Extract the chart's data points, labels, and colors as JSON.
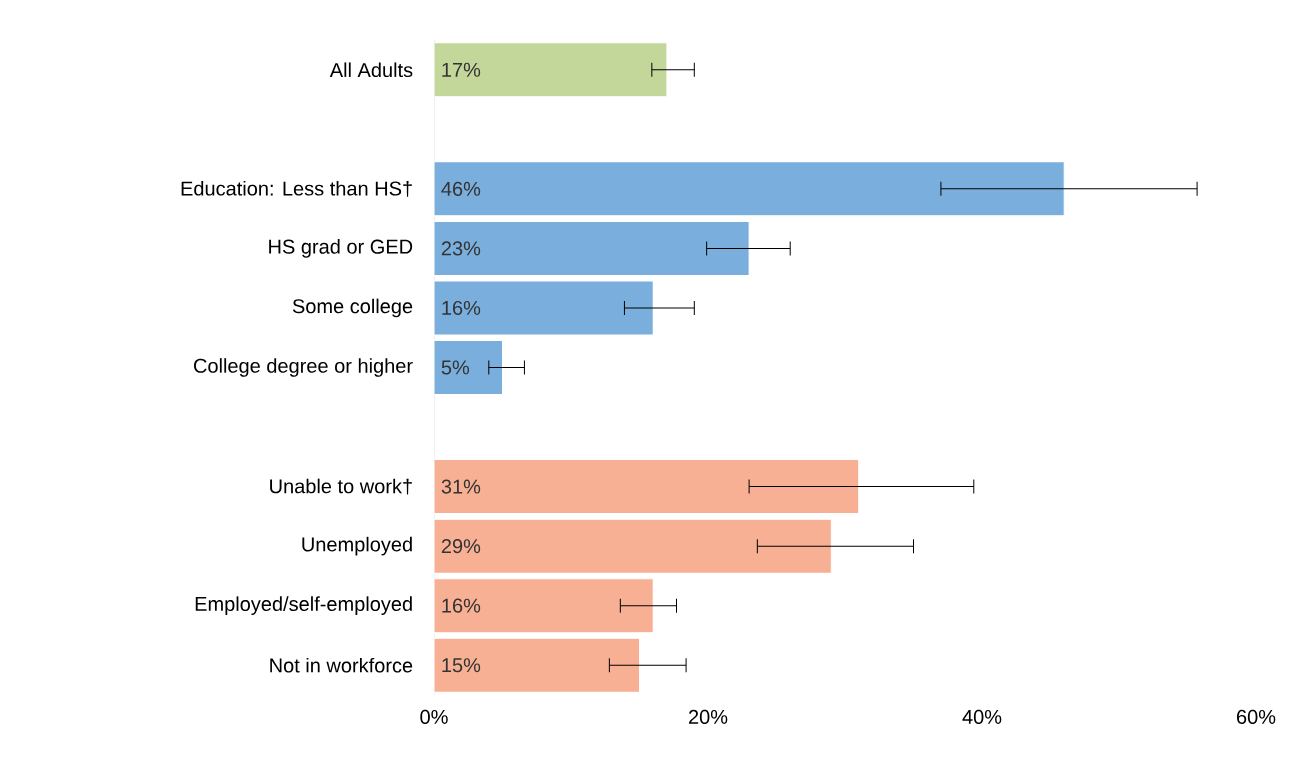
{
  "chart_data": {
    "type": "bar",
    "orientation": "horizontal",
    "categories": [
      "All Adults",
      null,
      "Education: Less than HS†",
      "HS grad or GED",
      "Some college",
      "College degree or higher",
      null,
      "Unable to work†",
      "Unemployed",
      "Employed/self-employed",
      "Not in workforce"
    ],
    "values": [
      17,
      null,
      46,
      23,
      16,
      5,
      null,
      31,
      29,
      16,
      15
    ],
    "value_labels": [
      "17%",
      null,
      "46%",
      "23%",
      "16%",
      "5%",
      null,
      "31%",
      "29%",
      "16%",
      "15%"
    ],
    "colors": [
      "#c4d79b",
      null,
      "#7aaedc",
      "#7aaedc",
      "#7aaedc",
      "#7aaedc",
      null,
      "#f7b093",
      "#f7b093",
      "#f7b093",
      "#f7b093"
    ],
    "errors": [
      [
        15.9,
        19.0
      ],
      null,
      [
        37.0,
        55.7
      ],
      [
        19.9,
        26.0
      ],
      [
        13.9,
        19.0
      ],
      [
        4.0,
        6.6
      ],
      null,
      [
        23.0,
        39.4
      ],
      [
        23.6,
        35.0
      ],
      [
        13.6,
        17.7
      ],
      [
        12.8,
        18.4
      ]
    ],
    "xlim": [
      0,
      60
    ],
    "xticks": [
      {
        "value": 0,
        "label": "0%"
      },
      {
        "value": 20,
        "label": "20%"
      },
      {
        "value": 40,
        "label": "40%"
      },
      {
        "value": 60,
        "label": "60%"
      }
    ]
  }
}
